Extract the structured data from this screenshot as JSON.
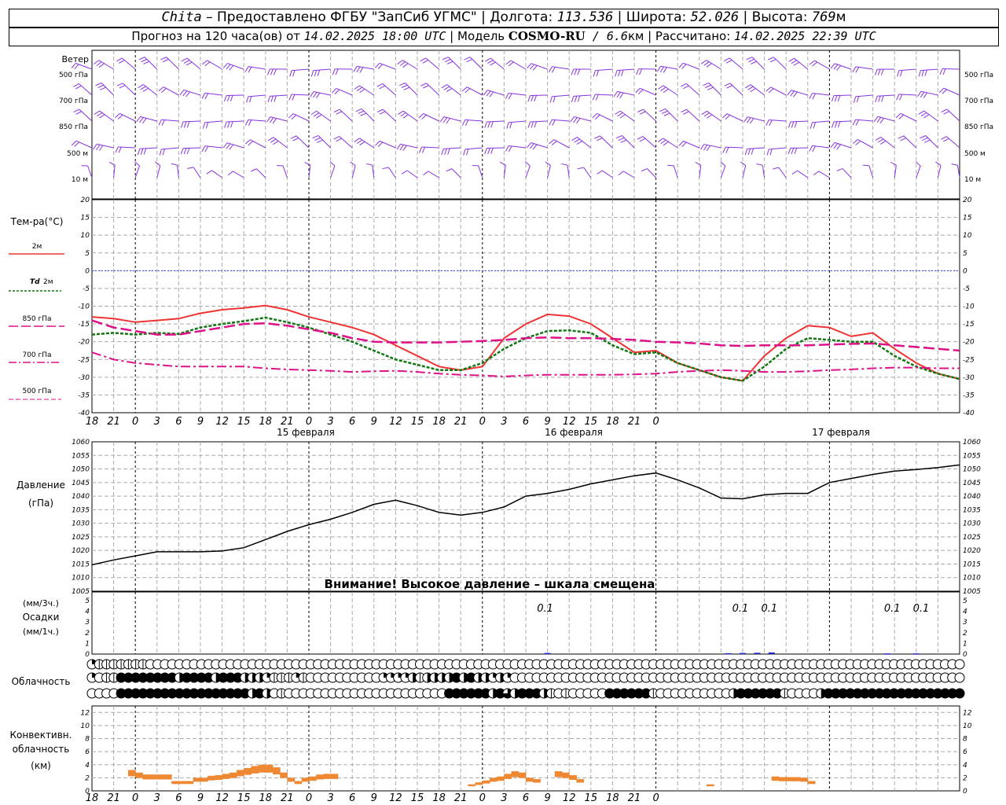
{
  "header": {
    "city": "Chita",
    "provider": " – Предоставлено ФГБУ \"ЗапСиб УГМС\" | Долгота: ",
    "lon": "113.536",
    "lat_label": " | Широта: ",
    "lat": "52.026",
    "alt_label": " | Высота: ",
    "alt": "769",
    "alt_unit": "м",
    "line2_a": "Прогноз на 120 часа(ов) от ",
    "run_time": "14.02.2025 18:00 UTC",
    "line2_b": "  | Модель ",
    "model": "COSMO-RU",
    "res": " / 6.6",
    "res_unit": "км",
    "line2_c": " | Рассчитано: ",
    "calc_time": "14.02.2025 22:39 UTC"
  },
  "colors": {
    "t2m": "#ee3333",
    "td2m": "#117711",
    "t850": "#dd1188",
    "t700": "#dd1188",
    "t500": "#dd1188",
    "wind": "#8833dd",
    "precip": "#2222cc",
    "conv": "#ee8833"
  },
  "labels": {
    "wind": "Ветер",
    "levels": [
      "500 гПа",
      "700 гПа",
      "850 гПа",
      "500 м",
      "10 м"
    ],
    "temp_title": "Тем-ра(°C)",
    "t2m": "2м",
    "td_a": "Td",
    "td_b": "2м",
    "t850": "850 гПа",
    "t700": "700 гПа",
    "t500": "500 гПа",
    "pressure_a": "Давление",
    "pressure_b": "(гПа)",
    "pressure_note": "Внимание! Высокое давление – шкала смещена",
    "precip_a": "(мм/3ч.)",
    "precip_b": "Осадки",
    "precip_c": "(мм/1ч.)",
    "cloud": "Облачность",
    "conv_a": "Конвективн.",
    "conv_b": "облачность",
    "conv_c": "(км)"
  },
  "time_axis": {
    "hour_labels": [
      "18",
      "21",
      "0",
      "3",
      "6",
      "9",
      "12",
      "15",
      "18",
      "21",
      "0",
      "3",
      "6",
      "9",
      "12",
      "15",
      "18",
      "21",
      "0",
      "3",
      "6",
      "9",
      "12",
      "15",
      "18",
      "21",
      "0"
    ],
    "day_labels": [
      "15 февраля",
      "16 февраля",
      "17 февраля"
    ]
  },
  "chart_data": [
    {
      "type": "line",
      "title": "Тем-ра(°C)",
      "ylim": [
        -40,
        20
      ],
      "yticks": [
        "20",
        "15",
        "10",
        "5",
        "0",
        "-5",
        "-10",
        "-15",
        "-20",
        "-25",
        "-30",
        "-35",
        "-40"
      ],
      "x_hours": [
        0,
        3,
        6,
        9,
        12,
        15,
        18,
        21,
        24,
        27,
        30,
        33,
        36,
        39,
        42,
        45,
        48,
        51,
        54,
        57,
        60,
        63,
        66,
        69,
        72,
        75,
        78,
        81,
        84,
        87,
        90,
        93,
        96,
        99,
        102,
        105,
        108,
        111,
        114,
        117,
        120
      ],
      "series": [
        {
          "name": "2м",
          "values": [
            -13,
            -13.5,
            -14.5,
            -14,
            -13.5,
            -12,
            -11,
            -10.5,
            -9.8,
            -11,
            -13,
            -14.5,
            -16,
            -18,
            -21,
            -24,
            -27,
            -28,
            -27,
            -19,
            -15,
            -12.3,
            -12.8,
            -15,
            -19,
            -23,
            -22.5,
            -26,
            -28,
            -30,
            -31,
            -24,
            -19,
            -15.5,
            -16,
            -18.5,
            -17.5,
            -22,
            -26,
            -29,
            -30.5
          ]
        },
        {
          "name": "Td 2м",
          "values": [
            -18,
            -17.5,
            -18,
            -17.5,
            -17.8,
            -16,
            -15,
            -14.2,
            -13.2,
            -14.5,
            -16,
            -18,
            -20,
            -22.5,
            -25,
            -26.5,
            -28,
            -28,
            -26,
            -22,
            -19,
            -17,
            -16.8,
            -17.5,
            -21,
            -23.5,
            -23,
            -26,
            -28,
            -30,
            -31,
            -27,
            -22,
            -19,
            -19.5,
            -20,
            -20,
            -24,
            -27,
            -29,
            -30.5
          ]
        },
        {
          "name": "850 гПа",
          "values": [
            -14,
            -16,
            -17,
            -18,
            -18,
            -17,
            -16,
            -15,
            -14.8,
            -15.5,
            -16.5,
            -17.5,
            -19,
            -20,
            -20.2,
            -20.2,
            -20.2,
            -20,
            -19.8,
            -19.5,
            -19,
            -18.8,
            -19,
            -19,
            -19.2,
            -19.5,
            -20,
            -20.2,
            -20.5,
            -21,
            -21.2,
            -21,
            -21,
            -21,
            -20.8,
            -20.6,
            -20.5,
            -21,
            -21.5,
            -22,
            -22.5
          ]
        },
        {
          "name": "700 гПа",
          "values": [
            -23,
            -25,
            -26,
            -26.5,
            -27,
            -27,
            -27,
            -27,
            -27.5,
            -27.8,
            -28,
            -28.2,
            -28.5,
            -28.3,
            -28.2,
            -28.5,
            -29,
            -29.3,
            -29.5,
            -29.8,
            -29.5,
            -29.3,
            -29.3,
            -29.3,
            -29.3,
            -29.2,
            -29,
            -28.5,
            -28.2,
            -28,
            -28.2,
            -28.5,
            -28.5,
            -28.3,
            -28,
            -27.8,
            -27.5,
            -27.3,
            -27.3,
            -27.5,
            -27.5
          ]
        }
      ]
    },
    {
      "type": "line",
      "title": "Давление",
      "ylim": [
        1005,
        1060
      ],
      "yticks": [
        "1060",
        "1055",
        "1050",
        "1045",
        "1040",
        "1035",
        "1030",
        "1025",
        "1020",
        "1015",
        "1010",
        "1005"
      ],
      "x_hours": [
        0,
        3,
        6,
        9,
        12,
        15,
        18,
        21,
        24,
        27,
        30,
        33,
        36,
        39,
        42,
        45,
        48,
        51,
        54,
        57,
        60,
        63,
        66,
        69,
        72,
        75,
        78,
        81,
        84,
        87,
        90,
        93,
        96,
        99,
        102,
        105,
        108,
        111,
        114,
        117,
        120
      ],
      "series": [
        {
          "name": "Давление",
          "values": [
            1014.7,
            1016.5,
            1018,
            1019.5,
            1019.5,
            1019.5,
            1019.8,
            1021,
            1024,
            1027,
            1029.5,
            1031.5,
            1034,
            1037,
            1038.5,
            1036.5,
            1034,
            1033,
            1034,
            1036,
            1040,
            1041,
            1042.5,
            1044.5,
            1046,
            1047.5,
            1048.5,
            1046,
            1043,
            1039.3,
            1039,
            1040.5,
            1041,
            1041,
            1045,
            1046.5,
            1048,
            1049.2,
            1049.8,
            1050.5,
            1051.5
          ]
        }
      ]
    },
    {
      "type": "bar",
      "title": "Осадки",
      "ylim": [
        0,
        5
      ],
      "yticks": [
        "5",
        "4",
        "3",
        "2",
        "1",
        "0"
      ],
      "bar_labels": [
        {
          "hour": 63,
          "text": "0.1"
        },
        {
          "hour": 90,
          "text": "0.1"
        },
        {
          "hour": 94,
          "text": "0.1"
        },
        {
          "hour": 111,
          "text": "0.1"
        },
        {
          "hour": 115,
          "text": "0.1"
        }
      ],
      "bars": [
        {
          "hour": 63,
          "value": 0.1
        },
        {
          "hour": 88,
          "value": 0.08
        },
        {
          "hour": 90,
          "value": 0.1
        },
        {
          "hour": 92,
          "value": 0.12
        },
        {
          "hour": 94,
          "value": 0.15
        },
        {
          "hour": 110,
          "value": 0.06
        },
        {
          "hour": 114,
          "value": 0.06
        }
      ]
    },
    {
      "type": "table",
      "title": "Облачность",
      "rows": [
        "211111110000000000000000000000000000000000000000000000000000000000000000000000000000000000000000000000000000000000000000",
        "201144444444344443444333211121000000000022223133334343323200000000000000000000000000000000000000000000000000000000000000",
        "000044444444444444444434301000000000000000000000044444434634443101000004444441000000000034444441000034444444444444444444"
      ]
    },
    {
      "type": "bar",
      "title": "Конвективн. облачность (км)",
      "ylim": [
        0,
        13
      ],
      "yticks": [
        "12",
        "10",
        "8",
        "6",
        "4",
        "2",
        "0"
      ],
      "bars": [
        {
          "hour": 5,
          "value": 3.2
        },
        {
          "hour": 6,
          "value": 2.8
        },
        {
          "hour": 7,
          "value": 2.5
        },
        {
          "hour": 8,
          "value": 2.5
        },
        {
          "hour": 9,
          "value": 2.5
        },
        {
          "hour": 10,
          "value": 2.5
        },
        {
          "hour": 11,
          "value": 1.5
        },
        {
          "hour": 12,
          "value": 1.5
        },
        {
          "hour": 13,
          "value": 1.5
        },
        {
          "hour": 14,
          "value": 2
        },
        {
          "hour": 15,
          "value": 2
        },
        {
          "hour": 16,
          "value": 2.3
        },
        {
          "hour": 17,
          "value": 2.4
        },
        {
          "hour": 18,
          "value": 2.6
        },
        {
          "hour": 19,
          "value": 2.8
        },
        {
          "hour": 20,
          "value": 3.2
        },
        {
          "hour": 21,
          "value": 3.5
        },
        {
          "hour": 22,
          "value": 3.8
        },
        {
          "hour": 23,
          "value": 4
        },
        {
          "hour": 24,
          "value": 4
        },
        {
          "hour": 25,
          "value": 3.6
        },
        {
          "hour": 26,
          "value": 2.8
        },
        {
          "hour": 27,
          "value": 2
        },
        {
          "hour": 28,
          "value": 1.5
        },
        {
          "hour": 29,
          "value": 2
        },
        {
          "hour": 30,
          "value": 2.2
        },
        {
          "hour": 31,
          "value": 2.5
        },
        {
          "hour": 32,
          "value": 2.6
        },
        {
          "hour": 33,
          "value": 2.6
        },
        {
          "hour": 52,
          "value": 1
        },
        {
          "hour": 53,
          "value": 1.3
        },
        {
          "hour": 54,
          "value": 1.6
        },
        {
          "hour": 55,
          "value": 2
        },
        {
          "hour": 56,
          "value": 2.2
        },
        {
          "hour": 57,
          "value": 2.6
        },
        {
          "hour": 58,
          "value": 3
        },
        {
          "hour": 59,
          "value": 2.8
        },
        {
          "hour": 60,
          "value": 2
        },
        {
          "hour": 61,
          "value": 1.8
        },
        {
          "hour": 64,
          "value": 3
        },
        {
          "hour": 65,
          "value": 2.8
        },
        {
          "hour": 66,
          "value": 2.4
        },
        {
          "hour": 67,
          "value": 1.8
        },
        {
          "hour": 85,
          "value": 1
        },
        {
          "hour": 94,
          "value": 2.2
        },
        {
          "hour": 95,
          "value": 2.1
        },
        {
          "hour": 96,
          "value": 2.1
        },
        {
          "hour": 97,
          "value": 2.1
        },
        {
          "hour": 98,
          "value": 2
        },
        {
          "hour": 99,
          "value": 1.5
        }
      ]
    }
  ]
}
